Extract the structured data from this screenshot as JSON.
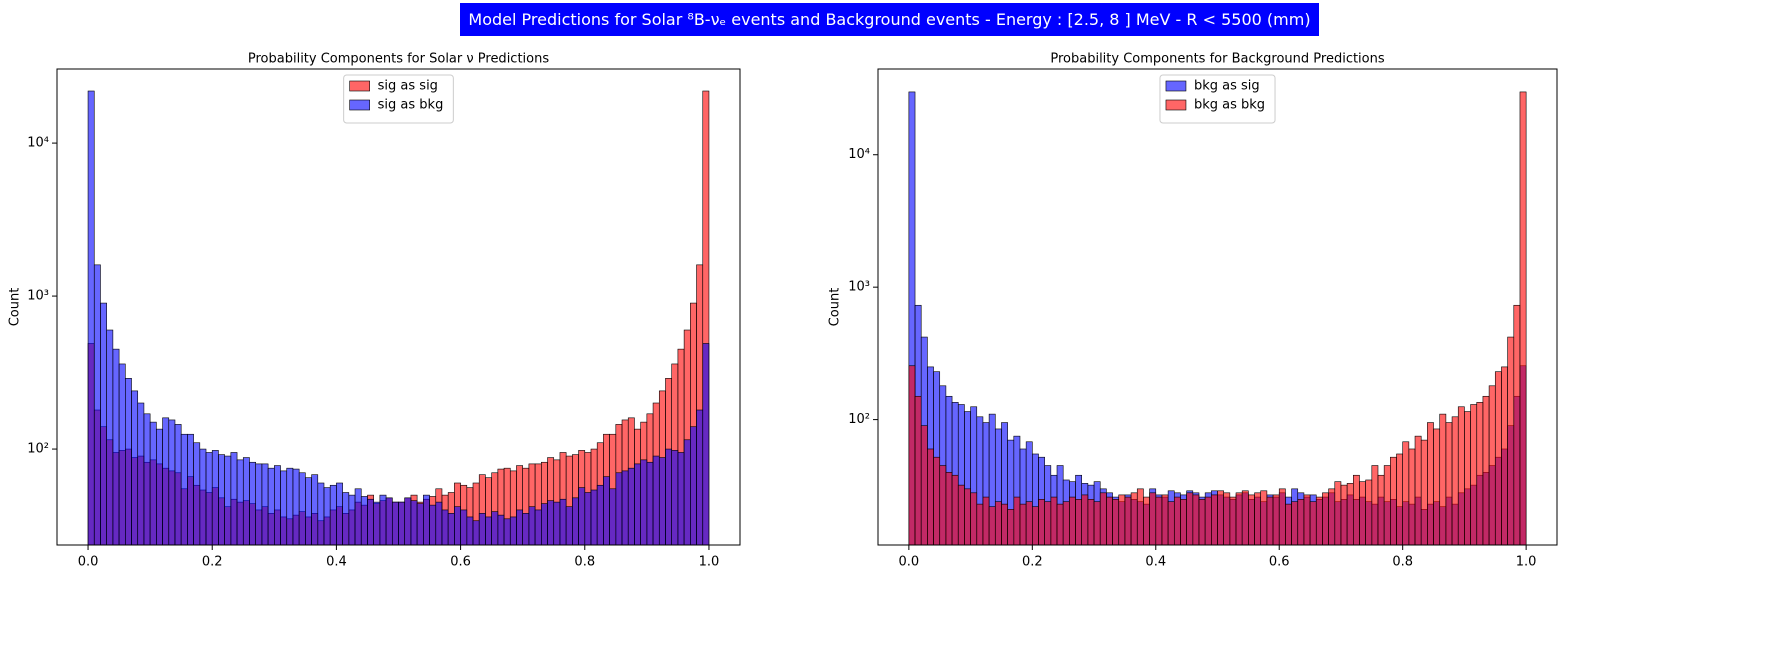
{
  "title": "Model Predictions for Solar ⁸B-νₑ events and Background events - Energy : [2.5, 8 ] MeV - R < 5500 (mm)",
  "chart_data": [
    {
      "type": "histogram",
      "title": "Probability Components for Solar ν Predictions",
      "ylabel": "Count",
      "log_y": true,
      "legend": "upper center",
      "xlim": [
        -0.05,
        1.05
      ],
      "xticks": [
        {
          "value": 0,
          "label": "0.0"
        },
        0.2,
        0.4,
        0.6,
        0.8,
        {
          "value": 1,
          "label": "1.0"
        }
      ],
      "ylim": [
        23.6,
        30500
      ],
      "yticks": [
        {
          "value": 100,
          "label": "10²"
        },
        {
          "value": 1000,
          "label": "10³"
        },
        {
          "value": 10000,
          "label": "10⁴"
        }
      ],
      "bins": [
        0,
        0.01,
        0.02,
        0.03,
        0.04,
        0.05,
        0.06,
        0.07,
        0.08,
        0.09,
        0.1,
        0.11,
        0.12,
        0.13,
        0.14,
        0.15,
        0.16,
        0.17,
        0.18,
        0.19,
        0.2,
        0.21,
        0.22,
        0.23,
        0.24,
        0.25,
        0.26,
        0.27,
        0.28,
        0.29,
        0.3,
        0.31,
        0.32,
        0.33,
        0.34,
        0.35,
        0.36,
        0.37,
        0.38,
        0.39,
        0.4,
        0.41,
        0.42,
        0.43,
        0.44,
        0.45,
        0.46,
        0.47,
        0.48,
        0.49,
        0.5,
        0.51,
        0.52,
        0.53,
        0.54,
        0.55,
        0.56,
        0.57,
        0.58,
        0.59,
        0.6,
        0.61,
        0.62,
        0.63,
        0.64,
        0.65,
        0.66,
        0.67,
        0.68,
        0.69,
        0.7,
        0.71,
        0.72,
        0.73,
        0.74,
        0.75,
        0.76,
        0.77,
        0.78,
        0.79,
        0.8,
        0.81,
        0.82,
        0.83,
        0.84,
        0.85,
        0.86,
        0.87,
        0.88,
        0.89,
        0.9,
        0.91,
        0.92,
        0.93,
        0.94,
        0.95,
        0.96,
        0.97,
        0.98,
        0.99,
        1
      ],
      "series": [
        {
          "name": "sig as sig",
          "color": "#ff0000",
          "values": [
            490,
            180,
            140,
            115,
            95,
            98,
            100,
            88,
            90,
            82,
            85,
            80,
            75,
            72,
            70,
            55,
            66,
            58,
            54,
            52,
            56,
            48,
            42,
            47,
            45,
            46,
            44,
            40,
            42,
            38,
            40,
            36,
            35,
            37,
            39,
            36,
            38,
            34,
            36,
            40,
            42,
            38,
            40,
            45,
            43,
            50,
            44,
            46,
            48,
            45,
            45,
            48,
            50,
            45,
            47,
            49,
            55,
            50,
            52,
            60,
            58,
            56,
            60,
            68,
            65,
            70,
            74,
            75,
            72,
            78,
            75,
            80,
            80,
            82,
            88,
            85,
            95,
            90,
            92,
            98,
            95,
            100,
            110,
            125,
            125,
            145,
            155,
            160,
            135,
            150,
            170,
            200,
            240,
            290,
            360,
            450,
            600,
            900,
            1600,
            21900
          ]
        },
        {
          "name": "sig as bkg",
          "color": "#0000ff",
          "values": [
            21900,
            1600,
            900,
            600,
            450,
            360,
            290,
            240,
            200,
            170,
            150,
            135,
            160,
            155,
            145,
            125,
            125,
            110,
            100,
            95,
            98,
            92,
            90,
            95,
            85,
            88,
            82,
            80,
            80,
            75,
            78,
            72,
            75,
            74,
            70,
            65,
            68,
            60,
            56,
            58,
            60,
            52,
            50,
            55,
            49,
            47,
            45,
            50,
            48,
            45,
            45,
            48,
            46,
            44,
            50,
            43,
            45,
            40,
            38,
            42,
            40,
            36,
            34,
            38,
            36,
            39,
            37,
            35,
            36,
            40,
            38,
            42,
            40,
            44,
            46,
            45,
            47,
            42,
            48,
            56,
            52,
            54,
            58,
            66,
            55,
            70,
            72,
            75,
            80,
            85,
            82,
            90,
            88,
            100,
            98,
            95,
            115,
            140,
            180,
            490
          ]
        }
      ]
    },
    {
      "type": "histogram",
      "title": "Probability Components for Background Predictions",
      "ylabel": "Count",
      "log_y": true,
      "legend": "upper center",
      "xlim": [
        -0.05,
        1.05
      ],
      "xticks": [
        {
          "value": 0,
          "label": "0.0"
        },
        0.2,
        0.4,
        0.6,
        0.8,
        {
          "value": 1,
          "label": "1.0"
        }
      ],
      "ylim": [
        11.3,
        44400
      ],
      "yticks": [
        {
          "value": 100,
          "label": "10²"
        },
        {
          "value": 1000,
          "label": "10³"
        },
        {
          "value": 10000,
          "label": "10⁴"
        }
      ],
      "bins": [
        0,
        0.01,
        0.02,
        0.03,
        0.04,
        0.05,
        0.06,
        0.07,
        0.08,
        0.09,
        0.1,
        0.11,
        0.12,
        0.13,
        0.14,
        0.15,
        0.16,
        0.17,
        0.18,
        0.19,
        0.2,
        0.21,
        0.22,
        0.23,
        0.24,
        0.25,
        0.26,
        0.27,
        0.28,
        0.29,
        0.3,
        0.31,
        0.32,
        0.33,
        0.34,
        0.35,
        0.36,
        0.37,
        0.38,
        0.39,
        0.4,
        0.41,
        0.42,
        0.43,
        0.44,
        0.45,
        0.46,
        0.47,
        0.48,
        0.49,
        0.5,
        0.51,
        0.52,
        0.53,
        0.54,
        0.55,
        0.56,
        0.57,
        0.58,
        0.59,
        0.6,
        0.61,
        0.62,
        0.63,
        0.64,
        0.65,
        0.66,
        0.67,
        0.68,
        0.69,
        0.7,
        0.71,
        0.72,
        0.73,
        0.74,
        0.75,
        0.76,
        0.77,
        0.78,
        0.79,
        0.8,
        0.81,
        0.82,
        0.83,
        0.84,
        0.85,
        0.86,
        0.87,
        0.88,
        0.89,
        0.9,
        0.91,
        0.92,
        0.93,
        0.94,
        0.95,
        0.96,
        0.97,
        0.98,
        0.99,
        1
      ],
      "series": [
        {
          "name": "bkg as sig",
          "color": "#0000ff",
          "values": [
            29800,
            730,
            420,
            250,
            230,
            180,
            150,
            135,
            130,
            115,
            125,
            105,
            95,
            110,
            85,
            95,
            70,
            75,
            60,
            68,
            55,
            52,
            45,
            38,
            45,
            35,
            34,
            38,
            33,
            32,
            34,
            30,
            28,
            26,
            24,
            27,
            25,
            24,
            23,
            30,
            27,
            26,
            29,
            28,
            27,
            29,
            28,
            26,
            28,
            29,
            27,
            26,
            25,
            27,
            28,
            25,
            26,
            24,
            27,
            26,
            28,
            26,
            30,
            28,
            26,
            27,
            25,
            26,
            28,
            24,
            25,
            27,
            25,
            26,
            24,
            23,
            26,
            24,
            25,
            22,
            24,
            23,
            26,
            21,
            23,
            24,
            22,
            26,
            23,
            28,
            30,
            32,
            38,
            40,
            45,
            52,
            60,
            90,
            150,
            255
          ]
        },
        {
          "name": "bkg as bkg",
          "color": "#ff0000",
          "values": [
            255,
            150,
            90,
            60,
            52,
            45,
            40,
            38,
            32,
            30,
            28,
            23,
            26,
            22,
            24,
            23,
            21,
            26,
            23,
            24,
            22,
            25,
            24,
            26,
            23,
            24,
            26,
            25,
            27,
            25,
            24,
            28,
            26,
            25,
            27,
            26,
            28,
            30,
            26,
            28,
            26,
            27,
            24,
            26,
            25,
            28,
            27,
            25,
            26,
            27,
            29,
            28,
            26,
            28,
            29,
            27,
            28,
            29,
            26,
            27,
            30,
            23,
            24,
            25,
            27,
            24,
            26,
            28,
            30,
            34,
            32,
            33,
            38,
            34,
            35,
            45,
            38,
            45,
            52,
            55,
            68,
            60,
            75,
            70,
            95,
            85,
            110,
            95,
            105,
            125,
            115,
            130,
            135,
            150,
            180,
            230,
            250,
            420,
            730,
            29800
          ]
        }
      ]
    }
  ]
}
